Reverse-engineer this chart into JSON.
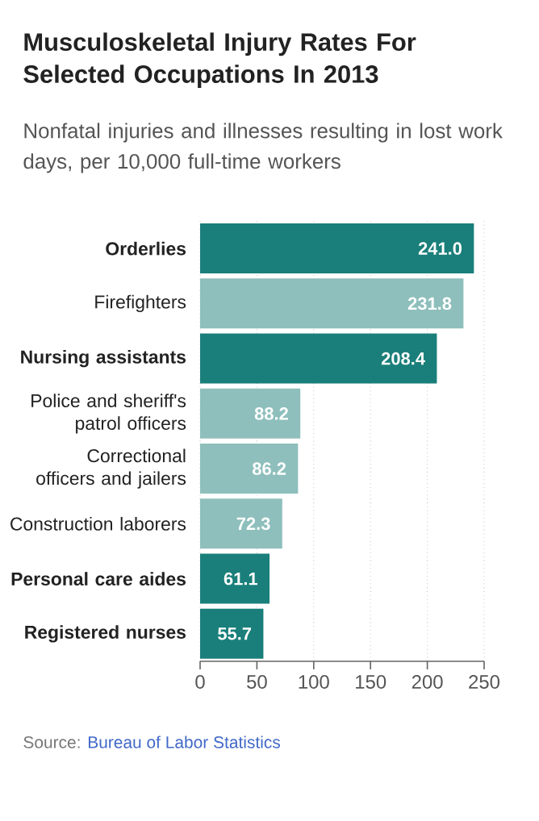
{
  "chart_data": {
    "type": "bar",
    "orientation": "horizontal",
    "title": "Musculoskeletal Injury Rates For Selected Occupations In 2013",
    "subtitle": "Nonfatal injuries and illnesses resulting in lost work days, per 10,000 full-time workers",
    "categories": [
      "Orderlies",
      "Firefighters",
      "Nursing assistants",
      "Police and sheriff's patrol officers",
      "Correctional officers and jailers",
      "Construction laborers",
      "Personal care aides",
      "Registered nurses"
    ],
    "values": [
      241.0,
      231.8,
      208.4,
      88.2,
      86.2,
      72.3,
      61.1,
      55.7
    ],
    "colors": [
      "#1a7f7a",
      "#8ebfbc",
      "#1a7f7a",
      "#8ebfbc",
      "#8ebfbc",
      "#8ebfbc",
      "#1a7f7a",
      "#1a7f7a"
    ],
    "value_labels": [
      "241.0",
      "231.8",
      "208.4",
      "88.2",
      "86.2",
      "72.3",
      "61.1",
      "55.7"
    ],
    "xlim": [
      0,
      250
    ],
    "xticks": [
      0,
      50,
      100,
      150,
      200,
      250
    ],
    "grid": "x",
    "annotations": [
      "Source:",
      "Bureau of Labor Statistics"
    ]
  }
}
